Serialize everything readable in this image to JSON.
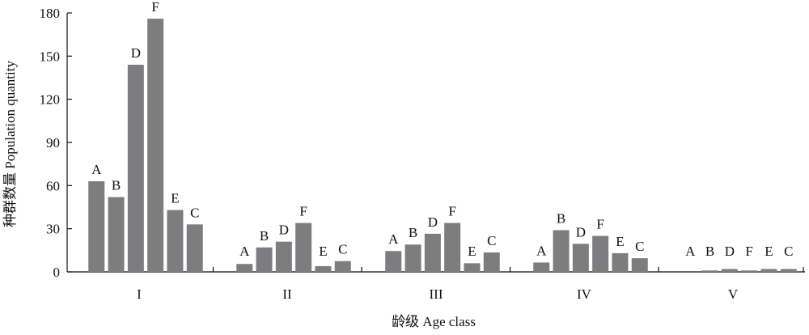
{
  "chart_data": {
    "type": "bar",
    "title": "",
    "ylabel": "种群数量 Population quantity",
    "xlabel": "龄级 Age class",
    "categories": [
      "I",
      "II",
      "III",
      "IV",
      "V"
    ],
    "ylim": [
      0,
      180
    ],
    "yticks": [
      0,
      30,
      60,
      90,
      120,
      150,
      180
    ],
    "grid": false,
    "legend": "none",
    "bar_color": "#7d7d7f",
    "groups": [
      {
        "category": "I",
        "bars": [
          {
            "label": "A",
            "value": 63
          },
          {
            "label": "B",
            "value": 52
          },
          {
            "label": "D",
            "value": 144
          },
          {
            "label": "F",
            "value": 176
          },
          {
            "label": "E",
            "value": 43
          },
          {
            "label": "C",
            "value": 33
          }
        ]
      },
      {
        "category": "II",
        "bars": [
          {
            "label": "A",
            "value": 5.5
          },
          {
            "label": "B",
            "value": 17
          },
          {
            "label": "D",
            "value": 21
          },
          {
            "label": "F",
            "value": 34
          },
          {
            "label": "E",
            "value": 4
          },
          {
            "label": "C",
            "value": 7.5
          }
        ]
      },
      {
        "category": "III",
        "bars": [
          {
            "label": "A",
            "value": 14.5
          },
          {
            "label": "B",
            "value": 19
          },
          {
            "label": "D",
            "value": 26.5
          },
          {
            "label": "F",
            "value": 34
          },
          {
            "label": "E",
            "value": 6
          },
          {
            "label": "C",
            "value": 13.5
          }
        ]
      },
      {
        "category": "IV",
        "bars": [
          {
            "label": "A",
            "value": 6.5
          },
          {
            "label": "B",
            "value": 29
          },
          {
            "label": "D",
            "value": 19.5
          },
          {
            "label": "F",
            "value": 25
          },
          {
            "label": "E",
            "value": 13
          },
          {
            "label": "C",
            "value": 9.5
          }
        ]
      },
      {
        "category": "V",
        "bars": [
          {
            "label": "A",
            "value": 0
          },
          {
            "label": "B",
            "value": 1
          },
          {
            "label": "D",
            "value": 2
          },
          {
            "label": "F",
            "value": 1
          },
          {
            "label": "E",
            "value": 2
          },
          {
            "label": "C",
            "value": 2
          }
        ]
      }
    ]
  }
}
